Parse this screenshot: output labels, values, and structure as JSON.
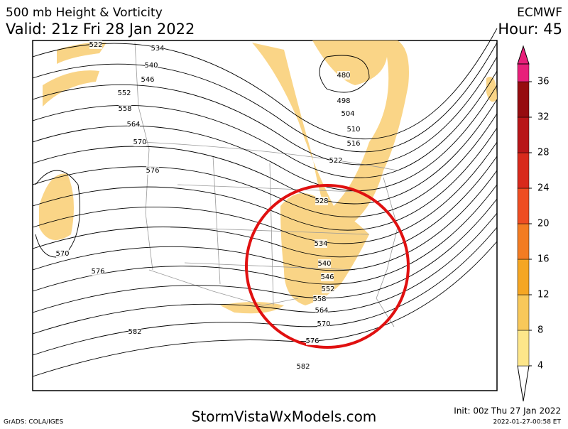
{
  "header": {
    "title": "500 mb Height & Vorticity",
    "valid": "Valid: 21z Fri 28 Jan 2022",
    "model": "ECMWF",
    "hour": "Hour: 45"
  },
  "colorbar": {
    "ticks": [
      4,
      8,
      12,
      16,
      20,
      24,
      28,
      32,
      36
    ],
    "colors": [
      "#fff8b0",
      "#fde68a",
      "#f8c85a",
      "#f5a623",
      "#f37c22",
      "#ee4d22",
      "#d82a1c",
      "#b81518",
      "#960c10",
      "#e8207a"
    ]
  },
  "contour_labels": [
    "522",
    "534",
    "540",
    "546",
    "552",
    "558",
    "564",
    "570",
    "576",
    "570",
    "576",
    "582",
    "582",
    "480",
    "498",
    "504",
    "510",
    "516",
    "522",
    "528",
    "534",
    "540",
    "546",
    "552",
    "558",
    "564",
    "570",
    "576"
  ],
  "footer": {
    "credit": "GrADS: COLA/IGES",
    "site": "StormVistaWxModels.com",
    "init": "Init: 00z Thu 27 Jan 2022",
    "stamp": "2022-01-27-00:58 ET"
  }
}
